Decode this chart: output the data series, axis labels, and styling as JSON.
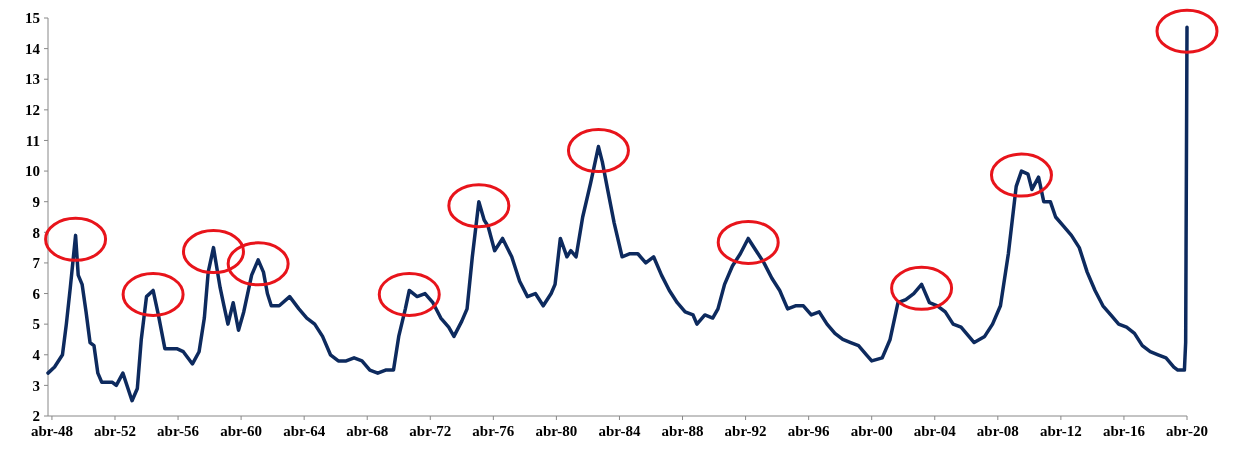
{
  "chart_data": {
    "type": "line",
    "x": [
      "1948-01",
      "1948-06",
      "1948-12",
      "1949-03",
      "1949-06",
      "1949-10",
      "1949-12",
      "1950-03",
      "1950-06",
      "1950-09",
      "1950-12",
      "1951-03",
      "1951-06",
      "1951-12",
      "1952-02",
      "1952-05",
      "1952-10",
      "1953-05",
      "1953-09",
      "1953-12",
      "1954-04",
      "1954-09",
      "1955-01",
      "1955-06",
      "1956-03",
      "1956-08",
      "1957-03",
      "1957-08",
      "1957-12",
      "1958-03",
      "1958-07",
      "1958-12",
      "1959-03",
      "1959-06",
      "1959-10",
      "1960-02",
      "1960-06",
      "1960-12",
      "1961-05",
      "1961-09",
      "1961-12",
      "1962-03",
      "1962-09",
      "1963-05",
      "1963-12",
      "1964-06",
      "1964-12",
      "1965-06",
      "1965-12",
      "1966-06",
      "1966-12",
      "1967-06",
      "1967-12",
      "1968-06",
      "1968-12",
      "1969-06",
      "1969-12",
      "1970-04",
      "1970-09",
      "1970-12",
      "1971-06",
      "1971-12",
      "1972-06",
      "1972-12",
      "1973-06",
      "1973-10",
      "1974-04",
      "1974-08",
      "1974-12",
      "1975-05",
      "1975-09",
      "1975-12",
      "1976-05",
      "1976-11",
      "1977-06",
      "1977-12",
      "1978-06",
      "1978-12",
      "1979-06",
      "1979-12",
      "1980-03",
      "1980-07",
      "1980-12",
      "1981-03",
      "1981-07",
      "1981-12",
      "1982-06",
      "1982-12",
      "1983-03",
      "1983-07",
      "1983-12",
      "1984-06",
      "1984-12",
      "1985-06",
      "1985-12",
      "1986-06",
      "1986-12",
      "1987-06",
      "1987-12",
      "1988-06",
      "1988-12",
      "1989-03",
      "1989-09",
      "1990-03",
      "1990-07",
      "1990-12",
      "1991-06",
      "1991-12",
      "1992-06",
      "1992-12",
      "1993-06",
      "1993-12",
      "1994-06",
      "1994-12",
      "1995-06",
      "1995-12",
      "1996-06",
      "1996-12",
      "1997-06",
      "1997-12",
      "1998-06",
      "1998-12",
      "1999-06",
      "1999-12",
      "2000-04",
      "2000-12",
      "2001-06",
      "2001-12",
      "2002-06",
      "2002-12",
      "2003-06",
      "2003-12",
      "2004-06",
      "2004-12",
      "2005-06",
      "2005-12",
      "2006-06",
      "2006-10",
      "2007-06",
      "2007-12",
      "2008-06",
      "2008-12",
      "2009-06",
      "2009-10",
      "2010-03",
      "2010-06",
      "2010-11",
      "2011-03",
      "2011-08",
      "2011-12",
      "2012-06",
      "2012-12",
      "2013-06",
      "2013-12",
      "2014-06",
      "2014-12",
      "2015-06",
      "2015-12",
      "2016-06",
      "2016-12",
      "2017-06",
      "2017-12",
      "2018-06",
      "2018-12",
      "2019-06",
      "2019-09",
      "2020-02",
      "2020-03",
      "2020-04"
    ],
    "series": [
      {
        "color": "#0d2a5e",
        "values": [
          3.4,
          3.6,
          4.0,
          5.0,
          6.2,
          7.9,
          6.6,
          6.3,
          5.4,
          4.4,
          4.3,
          3.4,
          3.1,
          3.1,
          3.1,
          3.0,
          3.4,
          2.5,
          2.9,
          4.5,
          5.9,
          6.1,
          5.3,
          4.2,
          4.2,
          4.1,
          3.7,
          4.1,
          5.2,
          6.7,
          7.5,
          6.2,
          5.6,
          5.0,
          5.7,
          4.8,
          5.4,
          6.6,
          7.1,
          6.7,
          6.0,
          5.6,
          5.6,
          5.9,
          5.5,
          5.2,
          5.0,
          4.6,
          4.0,
          3.8,
          3.8,
          3.9,
          3.8,
          3.5,
          3.4,
          3.5,
          3.5,
          4.6,
          5.5,
          6.1,
          5.9,
          6.0,
          5.7,
          5.2,
          4.9,
          4.6,
          5.1,
          5.5,
          7.2,
          9.0,
          8.4,
          8.2,
          7.4,
          7.8,
          7.2,
          6.4,
          5.9,
          6.0,
          5.6,
          6.0,
          6.3,
          7.8,
          7.2,
          7.4,
          7.2,
          8.5,
          9.6,
          10.8,
          10.3,
          9.4,
          8.3,
          7.2,
          7.3,
          7.3,
          7.0,
          7.2,
          6.6,
          6.1,
          5.7,
          5.4,
          5.3,
          5.0,
          5.3,
          5.2,
          5.5,
          6.3,
          6.9,
          7.3,
          7.8,
          7.4,
          7.0,
          6.5,
          6.1,
          5.5,
          5.6,
          5.6,
          5.3,
          5.4,
          5.0,
          4.7,
          4.5,
          4.4,
          4.3,
          4.0,
          3.8,
          3.9,
          4.5,
          5.7,
          5.8,
          6.0,
          6.3,
          5.7,
          5.6,
          5.4,
          5.0,
          4.9,
          4.6,
          4.4,
          4.6,
          5.0,
          5.6,
          7.3,
          9.5,
          10.0,
          9.9,
          9.4,
          9.8,
          9.0,
          9.0,
          8.5,
          8.2,
          7.9,
          7.5,
          6.7,
          6.1,
          5.6,
          5.3,
          5.0,
          4.9,
          4.7,
          4.3,
          4.1,
          4.0,
          3.9,
          3.6,
          3.5,
          3.5,
          4.4,
          14.7
        ]
      }
    ],
    "xlim": [
      "1948-01",
      "2020-04"
    ],
    "xticks": [
      {
        "value": "1948-04",
        "label": "abr-48"
      },
      {
        "value": "1952-04",
        "label": "abr-52"
      },
      {
        "value": "1956-04",
        "label": "abr-56"
      },
      {
        "value": "1960-04",
        "label": "abr-60"
      },
      {
        "value": "1964-04",
        "label": "abr-64"
      },
      {
        "value": "1968-04",
        "label": "abr-68"
      },
      {
        "value": "1972-04",
        "label": "abr-72"
      },
      {
        "value": "1976-04",
        "label": "abr-76"
      },
      {
        "value": "1980-04",
        "label": "abr-80"
      },
      {
        "value": "1984-04",
        "label": "abr-84"
      },
      {
        "value": "1988-04",
        "label": "abr-88"
      },
      {
        "value": "1992-04",
        "label": "abr-92"
      },
      {
        "value": "1996-04",
        "label": "abr-96"
      },
      {
        "value": "2000-04",
        "label": "abr-00"
      },
      {
        "value": "2004-04",
        "label": "abr-04"
      },
      {
        "value": "2008-04",
        "label": "abr-08"
      },
      {
        "value": "2012-04",
        "label": "abr-12"
      },
      {
        "value": "2016-04",
        "label": "abr-16"
      },
      {
        "value": "2020-04",
        "label": "abr-20"
      }
    ],
    "ylim": [
      2,
      15
    ],
    "yticks": [
      2,
      3,
      4,
      5,
      6,
      7,
      8,
      9,
      10,
      11,
      12,
      13,
      14,
      15
    ],
    "grid": false,
    "marker": "none",
    "line_style": "solid"
  }
}
